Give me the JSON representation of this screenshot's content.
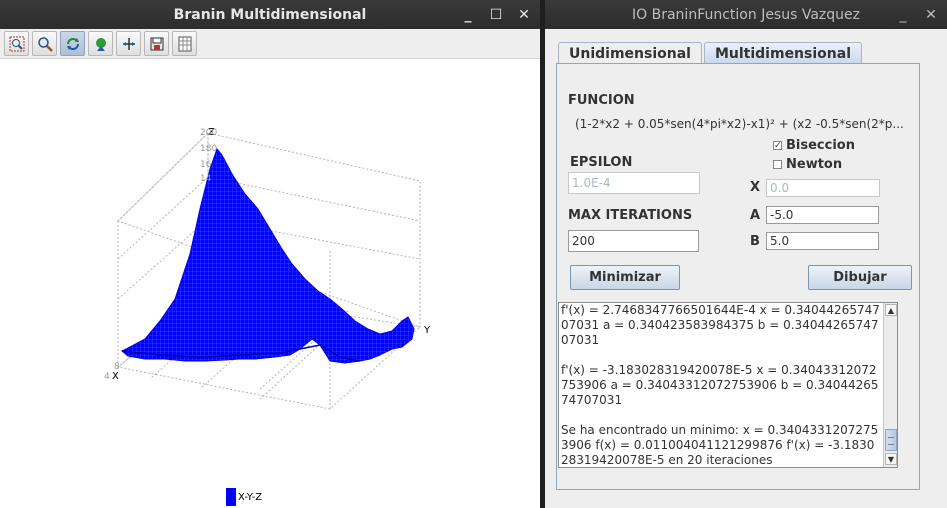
{
  "left_window": {
    "title": "Branin Multidimensional",
    "controls": {
      "minimize": "_",
      "maximize": "☐",
      "close": "✕"
    },
    "toolbar": [
      "zoom-rect-icon",
      "zoom-icon",
      "rotate-icon",
      "translate-icon",
      "reset-icon",
      "save-icon",
      "grid-icon"
    ],
    "axis_labels": {
      "z": "Z",
      "y": "Y",
      "x": "X"
    },
    "tick_labels": {
      "z_top": "200",
      "z_a": "180",
      "z_b": "16",
      "z_c": "14",
      "x_a": "4",
      "x_b": "8"
    },
    "legend": "X-Y-Z",
    "surface_color": "#0000ff"
  },
  "right_window": {
    "title": "IO BraninFunction Jesus Vazquez",
    "controls": {
      "minimize": "_",
      "close": "✕"
    },
    "tabs": [
      {
        "label": "Unidimensional",
        "selected": false
      },
      {
        "label": "Multidimensional",
        "selected": true
      }
    ],
    "funcion_label": "FUNCION",
    "funcion_text": "(1-2*x2 + 0.05*sen(4*pi*x2)-x1)² + (x2 -0.5*sen(2*p...",
    "biseccion": {
      "label": "Biseccion",
      "checked": true
    },
    "newton": {
      "label": "Newton",
      "checked": false
    },
    "epsilon_label": "EPSILON",
    "epsilon_value": "1.0E-4",
    "x_label": "X",
    "x_value": "0.0",
    "max_iter_label": "MAX ITERATIONS",
    "max_iter_value": "200",
    "a_label": "A",
    "a_value": "-5.0",
    "b_label": "B",
    "b_value": "5.0",
    "minimizar_label": "Minimizar",
    "dibujar_label": "Dibujar",
    "output": "f'(x) = 2.7468347766501644E-4 x = 0.3404426574707031 a = 0.340423583984375 b = 0.3404426574707031\n\nf'(x) = -3.183028319420078E-5 x = 0.3404331207275390​6 a = 0.34043312072753906 b = 0.3404426574707031\n\nSe ha encontrado un minimo: x = 0.34043312072753906 f(x) = 0.011004041121299876 f'(x) = -3.183028319420078E-5 en 20 iteraciones"
  },
  "accent": "#8fa6c0"
}
